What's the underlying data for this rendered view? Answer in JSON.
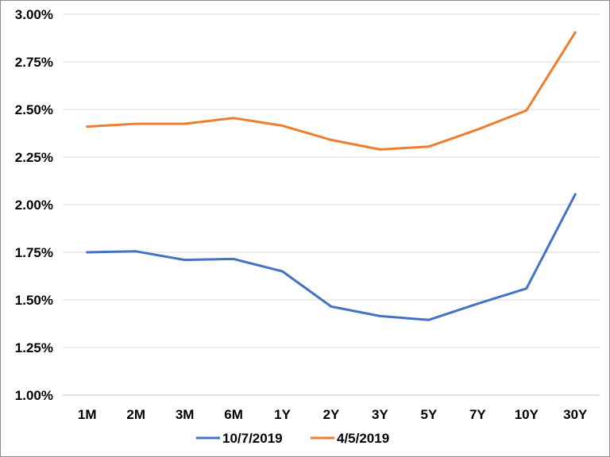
{
  "chart_data": {
    "type": "line",
    "categories": [
      "1M",
      "2M",
      "3M",
      "6M",
      "1Y",
      "2Y",
      "3Y",
      "5Y",
      "7Y",
      "10Y",
      "30Y"
    ],
    "ylim": [
      1.0,
      3.0
    ],
    "yticks": [
      "1.00%",
      "1.25%",
      "1.50%",
      "1.75%",
      "2.00%",
      "2.25%",
      "2.50%",
      "2.75%",
      "3.00%"
    ],
    "ytick_values": [
      1.0,
      1.25,
      1.5,
      1.75,
      2.0,
      2.25,
      2.5,
      2.75,
      3.0
    ],
    "grid": true,
    "legend_position": "bottom",
    "series": [
      {
        "name": "10/7/2019",
        "color": "#4472C4",
        "values": [
          1.75,
          1.755,
          1.71,
          1.715,
          1.65,
          1.465,
          1.415,
          1.395,
          1.48,
          1.56,
          2.055
        ]
      },
      {
        "name": "4/5/2019",
        "color": "#ED7D31",
        "values": [
          2.41,
          2.425,
          2.425,
          2.455,
          2.415,
          2.34,
          2.29,
          2.305,
          2.395,
          2.495,
          2.905
        ]
      }
    ]
  }
}
